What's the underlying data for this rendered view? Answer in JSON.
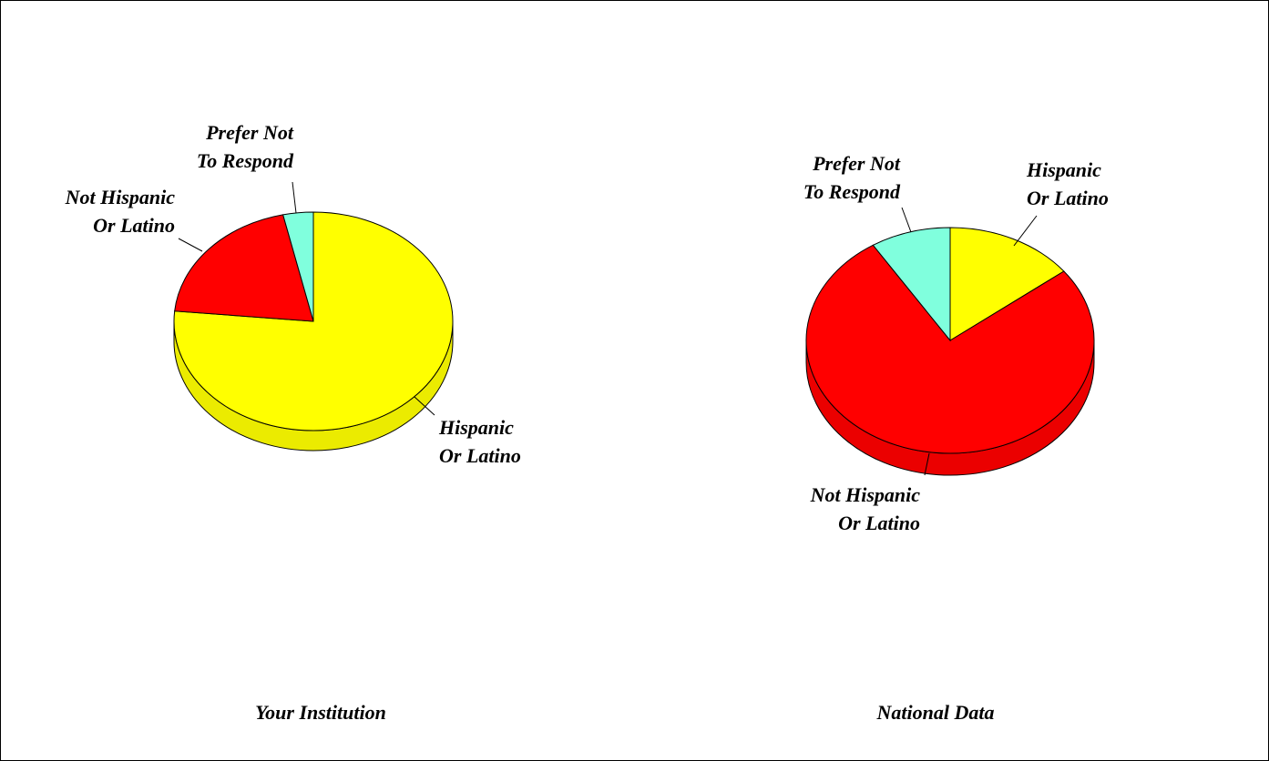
{
  "chart_data": [
    {
      "type": "pie",
      "title": "Your Institution",
      "start_angle_deg": 0,
      "direction": "clockwise",
      "slices": [
        {
          "label": [
            "Hispanic",
            "Or Latino"
          ],
          "value": 76.5,
          "color": "#FFFF00"
        },
        {
          "label": [
            "Not Hispanic",
            "Or Latino"
          ],
          "value": 20.0,
          "color": "#FF0000"
        },
        {
          "label": [
            "Prefer Not",
            "To Respond"
          ],
          "value": 3.5,
          "color": "#80FFDD"
        }
      ]
    },
    {
      "type": "pie",
      "title": "National Data",
      "start_angle_deg": 0,
      "direction": "clockwise",
      "slices": [
        {
          "label": [
            "Hispanic",
            "Or Latino"
          ],
          "value": 14.5,
          "color": "#FFFF00"
        },
        {
          "label": [
            "Not Hispanic",
            "Or Latino"
          ],
          "value": 76.5,
          "color": "#FF0000"
        },
        {
          "label": [
            "Prefer Not",
            "To Respond"
          ],
          "value": 9.0,
          "color": "#80FFDD"
        }
      ]
    }
  ]
}
